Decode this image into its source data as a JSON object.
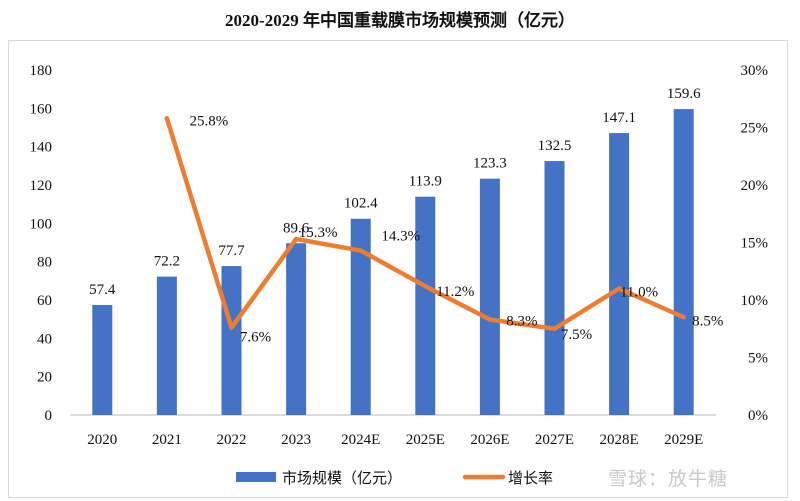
{
  "chart_data": {
    "type": "bar+line",
    "title": "2020-2029 年中国重载膜市场规模预测（亿元）",
    "categories": [
      "2020",
      "2021",
      "2022",
      "2023",
      "2024E",
      "2025E",
      "2026E",
      "2027E",
      "2028E",
      "2029E"
    ],
    "series": [
      {
        "name": "市场规模（亿元）",
        "type": "bar",
        "axis": "left",
        "color": "#4472C4",
        "values": [
          57.4,
          72.2,
          77.7,
          89.6,
          102.4,
          113.9,
          123.3,
          132.5,
          147.1,
          159.6
        ],
        "labels": [
          "57.4",
          "72.2",
          "77.7",
          "89.6",
          "102.4",
          "113.9",
          "123.3",
          "132.5",
          "147.1",
          "159.6"
        ]
      },
      {
        "name": "增长率",
        "type": "line",
        "axis": "right",
        "color": "#ED7D31",
        "values": [
          null,
          25.8,
          7.6,
          15.3,
          14.3,
          11.2,
          8.3,
          7.5,
          11.0,
          8.5
        ],
        "labels": [
          "",
          "25.8%",
          "7.6%",
          "15.3%",
          "14.3%",
          "11.2%",
          "8.3%",
          "7.5%",
          "11.0%",
          "8.5%"
        ]
      }
    ],
    "y_left": {
      "ylim": [
        0,
        180
      ],
      "ticks": [
        "0",
        "20",
        "40",
        "60",
        "80",
        "100",
        "120",
        "140",
        "160",
        "180"
      ]
    },
    "y_right": {
      "ylim": [
        0,
        30
      ],
      "ticks": [
        "0%",
        "5%",
        "10%",
        "15%",
        "20%",
        "25%",
        "30%"
      ]
    },
    "grid": false,
    "legend": "bottom"
  },
  "watermark": "雪球：放牛糖"
}
